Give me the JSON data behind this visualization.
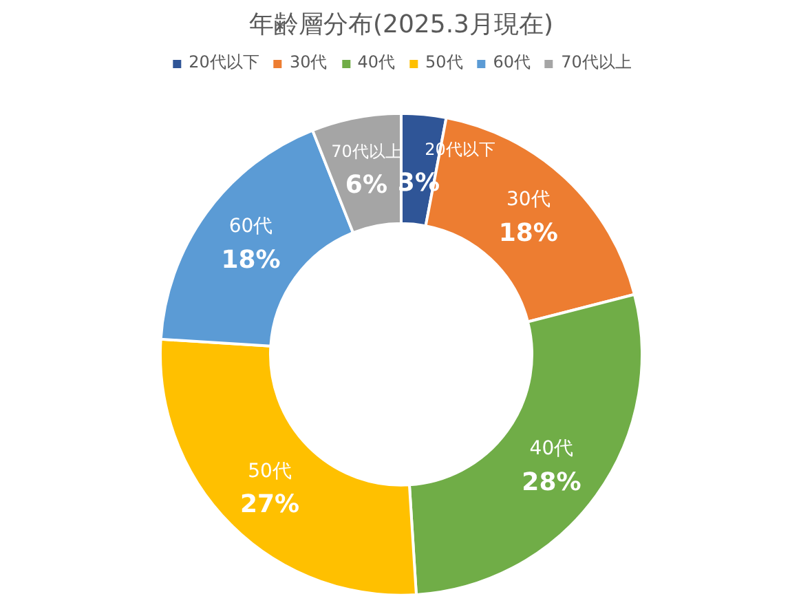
{
  "chart_data": {
    "type": "donut",
    "title": "年齢層分布(2025.3月現在)",
    "categories": [
      "20代以下",
      "30代",
      "40代",
      "50代",
      "60代",
      "70代以上"
    ],
    "values": [
      3,
      18,
      28,
      27,
      18,
      6
    ],
    "value_labels": [
      "3%",
      "18%",
      "28%",
      "27%",
      "18%",
      "6%"
    ],
    "colors": [
      "#2f5597",
      "#ed7d31",
      "#70ad47",
      "#ffc000",
      "#5b9bd5",
      "#a5a5a5"
    ],
    "legend": "top"
  }
}
